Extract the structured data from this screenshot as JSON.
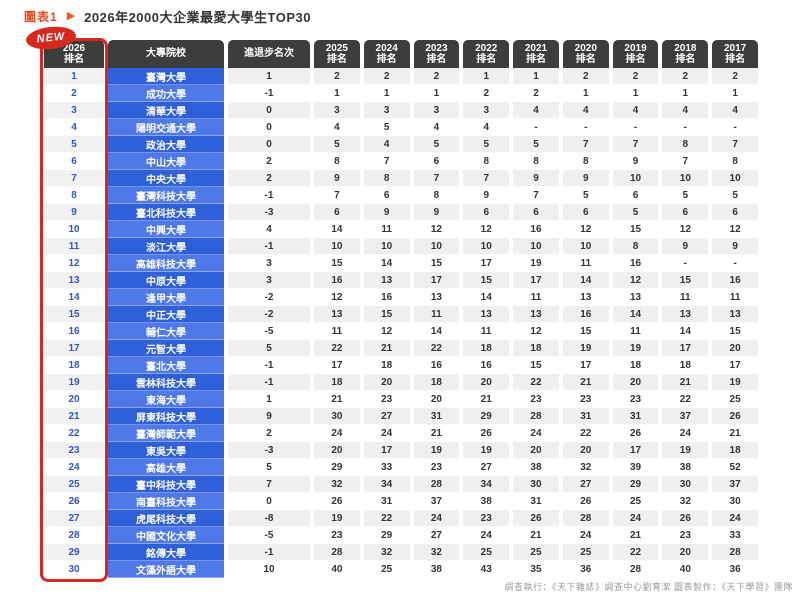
{
  "page": {
    "figure_label": "圖表1",
    "title": "2026年2000大企業最愛大學生TOP30",
    "new_badge": "NEW",
    "footer": "調查執行：《天下雜誌》調查中心劉育潔 圖表製作：《天下學習》團隊"
  },
  "colors": {
    "accent_red": "#d6281e",
    "title_orange": "#e8481e",
    "header_dark": "#3d3d3d",
    "school_blue_dark": "#2f5fd9",
    "school_blue_light": "#4f78e8",
    "row_gray": "#efefef",
    "rank_text_blue": "#2f55cc"
  },
  "chart_data": {
    "type": "table",
    "title": "2026年2000大企業最愛大學生TOP30",
    "columns": [
      "2026排名",
      "大專院校",
      "進退步名次",
      "2025排名",
      "2024排名",
      "2023排名",
      "2022排名",
      "2021排名",
      "2020排名",
      "2019排名",
      "2018排名",
      "2017排名"
    ],
    "rows": [
      [
        "1",
        "臺灣大學",
        "1",
        "2",
        "2",
        "2",
        "1",
        "1",
        "2",
        "2",
        "2",
        "2"
      ],
      [
        "2",
        "成功大學",
        "-1",
        "1",
        "1",
        "1",
        "2",
        "2",
        "1",
        "1",
        "1",
        "1"
      ],
      [
        "3",
        "清華大學",
        "0",
        "3",
        "3",
        "3",
        "3",
        "4",
        "4",
        "4",
        "4",
        "4"
      ],
      [
        "4",
        "陽明交通大學",
        "0",
        "4",
        "5",
        "4",
        "4",
        "-",
        "-",
        "-",
        "-",
        "-"
      ],
      [
        "5",
        "政治大學",
        "0",
        "5",
        "4",
        "5",
        "5",
        "5",
        "7",
        "7",
        "8",
        "7"
      ],
      [
        "6",
        "中山大學",
        "2",
        "8",
        "7",
        "6",
        "8",
        "8",
        "8",
        "9",
        "7",
        "8"
      ],
      [
        "7",
        "中央大學",
        "2",
        "9",
        "8",
        "7",
        "7",
        "9",
        "9",
        "10",
        "10",
        "10"
      ],
      [
        "8",
        "臺灣科技大學",
        "-1",
        "7",
        "6",
        "8",
        "9",
        "7",
        "5",
        "6",
        "5",
        "5"
      ],
      [
        "9",
        "臺北科技大學",
        "-3",
        "6",
        "9",
        "9",
        "6",
        "6",
        "6",
        "5",
        "6",
        "6"
      ],
      [
        "10",
        "中興大學",
        "4",
        "14",
        "11",
        "12",
        "12",
        "16",
        "12",
        "15",
        "12",
        "12"
      ],
      [
        "11",
        "淡江大學",
        "-1",
        "10",
        "10",
        "10",
        "10",
        "10",
        "10",
        "8",
        "9",
        "9"
      ],
      [
        "12",
        "高雄科技大學",
        "3",
        "15",
        "14",
        "15",
        "17",
        "19",
        "11",
        "16",
        "-",
        "-"
      ],
      [
        "13",
        "中原大學",
        "3",
        "16",
        "13",
        "17",
        "15",
        "17",
        "14",
        "12",
        "15",
        "16"
      ],
      [
        "14",
        "逢甲大學",
        "-2",
        "12",
        "16",
        "13",
        "14",
        "11",
        "13",
        "13",
        "11",
        "11"
      ],
      [
        "15",
        "中正大學",
        "-2",
        "13",
        "15",
        "11",
        "13",
        "13",
        "16",
        "14",
        "13",
        "13"
      ],
      [
        "16",
        "輔仁大學",
        "-5",
        "11",
        "12",
        "14",
        "11",
        "12",
        "15",
        "11",
        "14",
        "15"
      ],
      [
        "17",
        "元智大學",
        "5",
        "22",
        "21",
        "22",
        "18",
        "18",
        "19",
        "19",
        "17",
        "20"
      ],
      [
        "18",
        "臺北大學",
        "-1",
        "17",
        "18",
        "16",
        "16",
        "15",
        "17",
        "18",
        "18",
        "17"
      ],
      [
        "19",
        "雲林科技大學",
        "-1",
        "18",
        "20",
        "18",
        "20",
        "22",
        "21",
        "20",
        "21",
        "19"
      ],
      [
        "20",
        "東海大學",
        "1",
        "21",
        "23",
        "20",
        "21",
        "23",
        "23",
        "23",
        "22",
        "25"
      ],
      [
        "21",
        "屏東科技大學",
        "9",
        "30",
        "27",
        "31",
        "29",
        "28",
        "31",
        "31",
        "37",
        "26"
      ],
      [
        "22",
        "臺灣師範大學",
        "2",
        "24",
        "24",
        "21",
        "26",
        "24",
        "22",
        "26",
        "24",
        "21"
      ],
      [
        "23",
        "東吳大學",
        "-3",
        "20",
        "17",
        "19",
        "19",
        "20",
        "20",
        "17",
        "19",
        "18"
      ],
      [
        "24",
        "高雄大學",
        "5",
        "29",
        "33",
        "23",
        "27",
        "38",
        "32",
        "39",
        "38",
        "52"
      ],
      [
        "25",
        "臺中科技大學",
        "7",
        "32",
        "34",
        "28",
        "34",
        "30",
        "27",
        "29",
        "30",
        "37"
      ],
      [
        "26",
        "南臺科技大學",
        "0",
        "26",
        "31",
        "37",
        "38",
        "31",
        "26",
        "25",
        "32",
        "30"
      ],
      [
        "27",
        "虎尾科技大學",
        "-8",
        "19",
        "22",
        "24",
        "23",
        "26",
        "28",
        "24",
        "26",
        "24"
      ],
      [
        "28",
        "中國文化大學",
        "-5",
        "23",
        "29",
        "27",
        "24",
        "21",
        "24",
        "21",
        "23",
        "33"
      ],
      [
        "29",
        "銘傳大學",
        "-1",
        "28",
        "32",
        "32",
        "25",
        "25",
        "25",
        "22",
        "20",
        "28"
      ],
      [
        "30",
        "文藻外語大學",
        "10",
        "40",
        "25",
        "38",
        "43",
        "35",
        "36",
        "28",
        "40",
        "36"
      ]
    ]
  }
}
